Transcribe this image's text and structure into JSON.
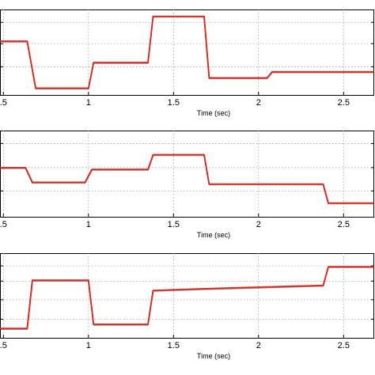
{
  "colors": {
    "trace": "#e8231a",
    "trace_shadow": "#3a1a1a"
  },
  "chart_data": [
    {
      "type": "line",
      "xlabel": "Time (sec)",
      "xlim": [
        0.48,
        2.68
      ],
      "ylim": [
        0,
        1
      ],
      "grid": true,
      "xticks": [
        0.5,
        1,
        1.5,
        2,
        2.5
      ],
      "xtick_labels": [
        ".5",
        "1",
        "1.5",
        "2",
        "2.5"
      ],
      "yticks": [
        0.33,
        0.6,
        0.85
      ],
      "series": [
        {
          "x": [
            0.48,
            0.64,
            0.69,
            1.0,
            1.03,
            1.35,
            1.38,
            1.68,
            1.71,
            2.05,
            2.08,
            2.68
          ],
          "y": [
            0.63,
            0.63,
            0.08,
            0.08,
            0.38,
            0.38,
            0.92,
            0.92,
            0.2,
            0.2,
            0.27,
            0.27
          ]
        }
      ]
    },
    {
      "type": "line",
      "xlabel": "Time (sec)",
      "xlim": [
        0.48,
        2.68
      ],
      "ylim": [
        0,
        1
      ],
      "grid": true,
      "xticks": [
        0.5,
        1,
        1.5,
        2,
        2.5
      ],
      "xtick_labels": [
        ".5",
        "1",
        "1.5",
        "2",
        "2.5"
      ],
      "yticks": [
        0.3,
        0.57,
        0.85
      ],
      "series": [
        {
          "x": [
            0.48,
            0.63,
            0.67,
            0.98,
            1.02,
            1.35,
            1.38,
            1.68,
            1.71,
            2.38,
            2.41,
            2.68
          ],
          "y": [
            0.57,
            0.57,
            0.4,
            0.4,
            0.55,
            0.55,
            0.72,
            0.72,
            0.38,
            0.38,
            0.16,
            0.16
          ]
        }
      ]
    },
    {
      "type": "line",
      "xlabel": "Time (sec)",
      "xlim": [
        0.48,
        2.68
      ],
      "ylim": [
        0,
        1
      ],
      "grid": true,
      "xticks": [
        0.5,
        1,
        1.5,
        2,
        2.5
      ],
      "xtick_labels": [
        ".5",
        "1",
        "1.5",
        "2",
        "2.5"
      ],
      "yticks": [
        0.22,
        0.45,
        0.67,
        0.85
      ],
      "series": [
        {
          "x": [
            0.48,
            0.64,
            0.67,
            1.0,
            1.03,
            1.35,
            1.38,
            1.68,
            2.38,
            2.41,
            2.68
          ],
          "y": [
            0.11,
            0.11,
            0.68,
            0.68,
            0.16,
            0.16,
            0.56,
            0.58,
            0.62,
            0.84,
            0.84
          ]
        }
      ]
    }
  ]
}
